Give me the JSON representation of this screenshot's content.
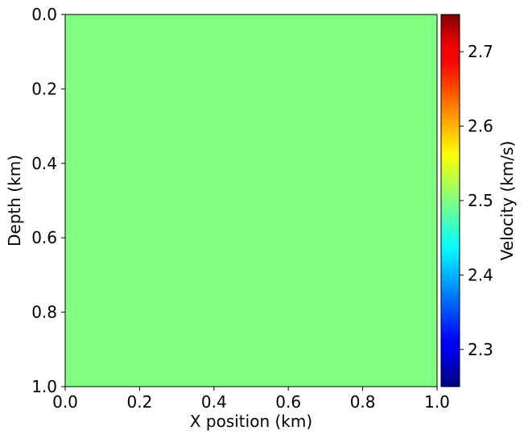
{
  "chart_data": {
    "type": "heatmap",
    "title": "",
    "xlabel": "X position (km)",
    "ylabel": "Depth (km)",
    "xlim": [
      0.0,
      1.0
    ],
    "ylim": [
      1.0,
      0.0
    ],
    "y_axis_inverted": true,
    "x_ticks": [
      "0.0",
      "0.2",
      "0.4",
      "0.6",
      "0.8",
      "1.0"
    ],
    "y_ticks": [
      "0.0",
      "0.2",
      "0.4",
      "0.6",
      "0.8",
      "1.0"
    ],
    "grid": false,
    "field": {
      "description": "uniform velocity model",
      "value": 2.5,
      "units": "km/s"
    },
    "colorbar": {
      "label": "Velocity (km/s)",
      "colormap": "jet",
      "range": [
        2.25,
        2.75
      ],
      "ticks": [
        2.3,
        2.4,
        2.5,
        2.6,
        2.7
      ],
      "tick_labels": [
        "2.3",
        "2.4",
        "2.5",
        "2.6",
        "2.7"
      ]
    }
  }
}
